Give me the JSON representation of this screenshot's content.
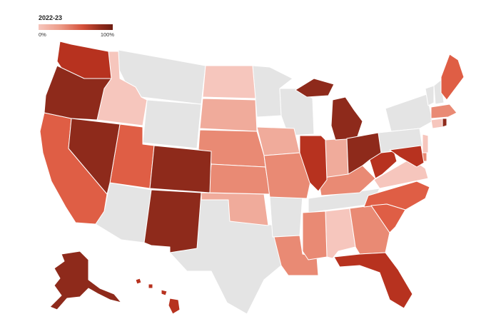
{
  "legend": {
    "title": "2022-23",
    "min_label": "0%",
    "max_label": "100%"
  },
  "colors": {
    "no_data": "#e4e4e4",
    "lightest": "#f6c6bd",
    "light": "#f0ab9b",
    "mid": "#e98a74",
    "strong": "#df5e45",
    "dark": "#b7321f",
    "darkest": "#8e2a1b"
  }
}
